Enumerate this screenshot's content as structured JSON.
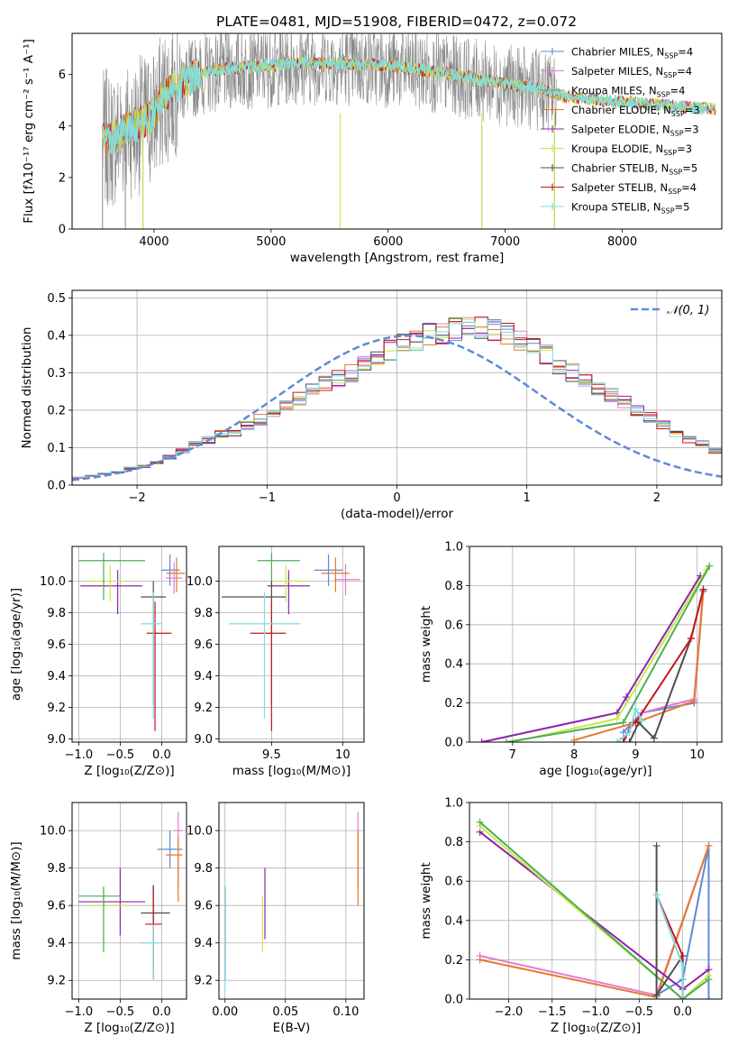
{
  "colors": {
    "chabrier_miles": "#5b8bd6",
    "salpeter_miles": "#e67bd0",
    "kroupa_miles": "#8a8a8a",
    "chabrier_elodie": "#e8772c",
    "salpeter_elodie": "#8e24aa",
    "kroupa_elodie": "#c6e84a",
    "chabrier_stelib": "#4d4d4d",
    "salpeter_stelib": "#c4161c",
    "kroupa_stelib": "#7fdde3",
    "grid": "#b0b0b0",
    "normal_curve": "#5b8bd6",
    "green_line": "#4caf50"
  },
  "chart_data": [
    {
      "id": "spectrum",
      "type": "line",
      "title": "PLATE=0481, MJD=51908, FIBERID=0472, z=0.072",
      "xlabel": "wavelength [Angstrom, rest frame]",
      "ylabel": "Flux [fλ10⁻¹⁷ erg cm⁻² s⁻¹ A⁻¹]",
      "xlim": [
        3300,
        8850
      ],
      "ylim": [
        0,
        7.6
      ],
      "xticks": [
        4000,
        5000,
        6000,
        7000,
        8000
      ],
      "yticks": [
        0,
        2,
        4,
        6
      ],
      "legend_position": "top-right",
      "legend": [
        {
          "main": "Chabrier MILES, N",
          "sub": "SSP",
          "tail": "=4"
        },
        {
          "main": "Salpeter MILES, N",
          "sub": "SSP",
          "tail": "=4"
        },
        {
          "main": "Kroupa MILES, N",
          "sub": "SSP",
          "tail": "=4"
        },
        {
          "main": "Chabrier ELODIE, N",
          "sub": "SSP",
          "tail": "=3"
        },
        {
          "main": "Salpeter ELODIE, N",
          "sub": "SSP",
          "tail": "=3"
        },
        {
          "main": "Kroupa ELODIE, N",
          "sub": "SSP",
          "tail": "=3"
        },
        {
          "main": "Chabrier STELIB, N",
          "sub": "SSP",
          "tail": "=5"
        },
        {
          "main": "Salpeter STELIB, N",
          "sub": "SSP",
          "tail": "=4"
        },
        {
          "main": "Kroupa STELIB, N",
          "sub": "SSP",
          "tail": "=5"
        }
      ],
      "model_continuum": {
        "x": [
          3550,
          3650,
          3800,
          3900,
          4000,
          4100,
          4200,
          4300,
          4400,
          4500,
          4700,
          5000,
          5200,
          5500,
          6000,
          6500,
          7000,
          7300,
          7500,
          8000,
          8500,
          8800
        ],
        "y": [
          3.9,
          3.9,
          4.3,
          4.5,
          4.8,
          5.6,
          6.0,
          6.2,
          6.4,
          6.5,
          6.6,
          6.7,
          6.8,
          6.8,
          6.7,
          6.4,
          6.0,
          5.8,
          5.5,
          5.3,
          5.1,
          5.0
        ]
      }
    },
    {
      "id": "residuals",
      "type": "bar",
      "xlabel": "(data-model)/error",
      "ylabel": "Normed distribution",
      "xlim": [
        -2.5,
        2.5
      ],
      "ylim": [
        0,
        0.52
      ],
      "xticks": [
        -2,
        -1,
        0,
        1,
        2
      ],
      "yticks": [
        0.0,
        0.1,
        0.2,
        0.3,
        0.4,
        0.5
      ],
      "legend_position": "top-right",
      "legend_label": "𝒩(0, 1)",
      "bin_edges_start": -2.5,
      "bin_width": 0.1,
      "histogram": [
        0.02,
        0.025,
        0.03,
        0.035,
        0.045,
        0.05,
        0.06,
        0.075,
        0.09,
        0.11,
        0.12,
        0.135,
        0.14,
        0.16,
        0.175,
        0.195,
        0.21,
        0.23,
        0.25,
        0.27,
        0.285,
        0.3,
        0.32,
        0.34,
        0.36,
        0.375,
        0.39,
        0.4,
        0.405,
        0.415,
        0.43,
        0.42,
        0.41,
        0.405,
        0.385,
        0.37,
        0.35,
        0.32,
        0.3,
        0.285,
        0.26,
        0.24,
        0.22,
        0.2,
        0.18,
        0.16,
        0.14,
        0.12,
        0.11,
        0.09
      ],
      "curve_mean": 0.1,
      "curve_sigma": 1.0
    },
    {
      "id": "age_vs_Z",
      "type": "scatter",
      "xlabel": "Z [log₁₀(Z/Z⊙)]",
      "ylabel": "age  [log₁₀(age/yr)]",
      "xlim": [
        -1.08,
        0.3
      ],
      "ylim": [
        8.98,
        10.22
      ],
      "xticks": [
        -1.0,
        -0.5,
        0.0
      ],
      "xtick_labels": [
        "−1.0",
        "−0.5",
        "0.0"
      ],
      "yticks": [
        9.0,
        9.2,
        9.4,
        9.6,
        9.8,
        10.0
      ],
      "points": [
        {
          "s": "chabrier_miles",
          "x": 0.1,
          "xerr": [
            0.1,
            0.12
          ],
          "y": 10.07,
          "yerr": [
            0.1,
            0.1
          ]
        },
        {
          "s": "salpeter_miles",
          "x": 0.15,
          "xerr": [
            0.1,
            0.1
          ],
          "y": 10.02,
          "yerr": [
            0.1,
            0.1
          ]
        },
        {
          "s": "chabrier_elodie",
          "x": 0.18,
          "xerr": [
            0.12,
            0.1
          ],
          "y": 10.05,
          "yerr": [
            0.12,
            0.1
          ]
        },
        {
          "s": "salpeter_elodie",
          "x": -0.53,
          "xerr": [
            0.45,
            0.3
          ],
          "y": 9.97,
          "yerr": [
            0.18,
            0.1
          ]
        },
        {
          "s": "kroupa_elodie",
          "x": -0.62,
          "xerr": [
            0.3,
            0.2
          ],
          "y": 10.0,
          "yerr": [
            0.13,
            0.1
          ]
        },
        {
          "s": "green_line",
          "x": -0.7,
          "xerr": [
            0.3,
            0.5
          ],
          "y": 10.13,
          "yerr": [
            0.25,
            0.05
          ]
        },
        {
          "s": "chabrier_stelib",
          "x": -0.1,
          "xerr": [
            0.15,
            0.15
          ],
          "y": 9.9,
          "yerr": [
            0.68,
            0.1
          ]
        },
        {
          "s": "salpeter_stelib",
          "x": -0.08,
          "xerr": [
            0.1,
            0.2
          ],
          "y": 9.67,
          "yerr": [
            0.62,
            0.2
          ]
        },
        {
          "s": "kroupa_stelib",
          "x": -0.1,
          "xerr": [
            0.15,
            0.1
          ],
          "y": 9.73,
          "yerr": [
            0.6,
            0.2
          ]
        }
      ]
    },
    {
      "id": "age_vs_mass",
      "type": "scatter",
      "xlabel": "mass [log₁₀(M/M⊙)]",
      "ylabel": "",
      "xlim": [
        9.13,
        10.15
      ],
      "ylim": [
        8.98,
        10.22
      ],
      "xticks": [
        9.5,
        10.0
      ],
      "yticks": [
        9.0,
        9.2,
        9.4,
        9.6,
        9.8,
        10.0
      ],
      "points": [
        {
          "s": "chabrier_miles",
          "x": 9.9,
          "xerr": [
            0.1,
            0.1
          ],
          "y": 10.07,
          "yerr": [
            0.1,
            0.1
          ]
        },
        {
          "s": "salpeter_miles",
          "x": 10.02,
          "xerr": [
            0.08,
            0.1
          ],
          "y": 10.01,
          "yerr": [
            0.1,
            0.1
          ]
        },
        {
          "s": "chabrier_elodie",
          "x": 9.95,
          "xerr": [
            0.1,
            0.1
          ],
          "y": 10.05,
          "yerr": [
            0.12,
            0.1
          ]
        },
        {
          "s": "salpeter_elodie",
          "x": 9.62,
          "xerr": [
            0.15,
            0.15
          ],
          "y": 9.97,
          "yerr": [
            0.18,
            0.1
          ]
        },
        {
          "s": "kroupa_elodie",
          "x": 9.6,
          "xerr": [
            0.1,
            0.15
          ],
          "y": 10.0,
          "yerr": [
            0.13,
            0.1
          ]
        },
        {
          "s": "green_line",
          "x": 9.5,
          "xerr": [
            0.1,
            0.2
          ],
          "y": 10.13,
          "yerr": [
            0.25,
            0.05
          ]
        },
        {
          "s": "chabrier_stelib",
          "x": 9.5,
          "xerr": [
            0.35,
            0.1
          ],
          "y": 9.9,
          "yerr": [
            0.68,
            0.1
          ]
        },
        {
          "s": "salpeter_stelib",
          "x": 9.5,
          "xerr": [
            0.15,
            0.1
          ],
          "y": 9.67,
          "yerr": [
            0.62,
            0.2
          ]
        },
        {
          "s": "kroupa_stelib",
          "x": 9.45,
          "xerr": [
            0.25,
            0.25
          ],
          "y": 9.73,
          "yerr": [
            0.6,
            0.2
          ]
        }
      ]
    },
    {
      "id": "weight_vs_age",
      "type": "line",
      "xlabel": "age  [log₁₀(age/yr)]",
      "ylabel": "mass weight",
      "xlim": [
        6.3,
        10.4
      ],
      "ylim": [
        0,
        1.0
      ],
      "xticks": [
        7,
        8,
        9,
        10
      ],
      "yticks": [
        0.0,
        0.2,
        0.4,
        0.6,
        0.8,
        1.0
      ],
      "series": [
        {
          "s": "chabrier_miles",
          "x": [
            8.8,
            9.1,
            9.95,
            10.1
          ],
          "y": [
            0.05,
            0.15,
            0.2,
            0.77
          ]
        },
        {
          "s": "salpeter_miles",
          "x": [
            8.8,
            9.1,
            9.95,
            10.1
          ],
          "y": [
            0.02,
            0.15,
            0.22,
            0.78
          ]
        },
        {
          "s": "chabrier_elodie",
          "x": [
            8.0,
            9.0,
            9.95,
            10.1
          ],
          "y": [
            0.01,
            0.1,
            0.21,
            0.78
          ]
        },
        {
          "s": "salpeter_elodie",
          "x": [
            6.5,
            8.7,
            8.85,
            10.05
          ],
          "y": [
            0.0,
            0.15,
            0.23,
            0.85
          ]
        },
        {
          "s": "kroupa_elodie",
          "x": [
            7.0,
            8.7,
            10.15
          ],
          "y": [
            0.0,
            0.12,
            0.88
          ]
        },
        {
          "s": "green_line",
          "x": [
            6.9,
            8.8,
            10.2
          ],
          "y": [
            0.0,
            0.1,
            0.9
          ]
        },
        {
          "s": "chabrier_stelib",
          "x": [
            8.9,
            9.05,
            9.3,
            9.9,
            10.1
          ],
          "y": [
            0.0,
            0.1,
            0.02,
            0.53,
            0.78
          ]
        },
        {
          "s": "salpeter_stelib",
          "x": [
            8.8,
            8.95,
            9.0,
            9.9,
            10.1
          ],
          "y": [
            0.0,
            0.1,
            0.1,
            0.53,
            0.78
          ]
        },
        {
          "s": "kroupa_stelib",
          "x": [
            8.7,
            8.9,
            9.0,
            9.1
          ],
          "y": [
            0.0,
            0.05,
            0.17,
            0.11
          ]
        }
      ]
    },
    {
      "id": "mass_vs_Z",
      "type": "scatter",
      "xlabel": "Z [log₁₀(Z/Z⊙)]",
      "ylabel": "mass [log₁₀(M/M⊙)]",
      "xlim": [
        -1.08,
        0.3
      ],
      "ylim": [
        9.1,
        10.15
      ],
      "xticks": [
        -1.0,
        -0.5,
        0.0
      ],
      "xtick_labels": [
        "−1.0",
        "−0.5",
        "0.0"
      ],
      "yticks": [
        9.2,
        9.4,
        9.6,
        9.8,
        10.0
      ],
      "points": [
        {
          "s": "chabrier_miles",
          "x": 0.1,
          "xerr": [
            0.15,
            0.15
          ],
          "y": 9.9,
          "yerr": [
            0.1,
            0.1
          ]
        },
        {
          "s": "salpeter_miles",
          "x": 0.2,
          "xerr": [
            0.05,
            0.05
          ],
          "y": 10.0,
          "yerr": [
            0.3,
            0.1
          ]
        },
        {
          "s": "chabrier_elodie",
          "x": 0.2,
          "xerr": [
            0.15,
            0.05
          ],
          "y": 9.87,
          "yerr": [
            0.25,
            0.1
          ]
        },
        {
          "s": "salpeter_elodie",
          "x": -0.5,
          "xerr": [
            0.5,
            0.3
          ],
          "y": 9.62,
          "yerr": [
            0.18,
            0.18
          ]
        },
        {
          "s": "kroupa_elodie",
          "x": -0.7,
          "xerr": [
            0.2,
            0.3
          ],
          "y": 9.6,
          "yerr": [
            0.25,
            0.1
          ]
        },
        {
          "s": "green_line",
          "x": -0.7,
          "xerr": [
            0.3,
            0.2
          ],
          "y": 9.65,
          "yerr": [
            0.3,
            0.05
          ]
        },
        {
          "s": "chabrier_stelib",
          "x": -0.1,
          "xerr": [
            0.15,
            0.2
          ],
          "y": 9.56,
          "yerr": [
            0.35,
            0.15
          ]
        },
        {
          "s": "salpeter_stelib",
          "x": -0.1,
          "xerr": [
            0.1,
            0.1
          ],
          "y": 9.5,
          "yerr": [
            0.2,
            0.2
          ]
        },
        {
          "s": "kroupa_stelib",
          "x": -0.1,
          "xerr": [
            0.15,
            0.1
          ],
          "y": 9.4,
          "yerr": [
            0.2,
            0.1
          ]
        }
      ]
    },
    {
      "id": "mass_vs_ebv",
      "type": "scatter",
      "xlabel": "E(B-V)",
      "ylabel": "",
      "xlim": [
        -0.005,
        0.115
      ],
      "ylim": [
        9.1,
        10.15
      ],
      "xticks": [
        0.0,
        0.05,
        0.1
      ],
      "xtick_labels": [
        "0.00",
        "0.05",
        "0.10"
      ],
      "yticks": [
        9.2,
        9.4,
        9.6,
        9.8,
        10.0
      ],
      "points": [
        {
          "s": "chabrier_miles",
          "x": 0.0,
          "xerr": [
            0,
            0
          ],
          "y": 9.4,
          "yerr": [
            0.2,
            0.25
          ]
        },
        {
          "s": "salpeter_miles",
          "x": 0.11,
          "xerr": [
            0,
            0
          ],
          "y": 9.9,
          "yerr": [
            0.2,
            0.2
          ]
        },
        {
          "s": "chabrier_elodie",
          "x": 0.11,
          "xerr": [
            0,
            0
          ],
          "y": 9.85,
          "yerr": [
            0.25,
            0.15
          ]
        },
        {
          "s": "salpeter_elodie",
          "x": 0.033,
          "xerr": [
            0,
            0
          ],
          "y": 9.6,
          "yerr": [
            0.18,
            0.2
          ]
        },
        {
          "s": "kroupa_elodie",
          "x": 0.031,
          "xerr": [
            0,
            0
          ],
          "y": 9.5,
          "yerr": [
            0.15,
            0.15
          ]
        },
        {
          "s": "chabrier_stelib",
          "x": 0.0,
          "xerr": [
            0,
            0
          ],
          "y": 9.5,
          "yerr": [
            0.3,
            0.2
          ]
        },
        {
          "s": "salpeter_stelib",
          "x": 0.0,
          "xerr": [
            0,
            0
          ],
          "y": 9.5,
          "yerr": [
            0.2,
            0.2
          ]
        },
        {
          "s": "kroupa_stelib",
          "x": 0.0,
          "xerr": [
            0,
            0
          ],
          "y": 9.4,
          "yerr": [
            0.25,
            0.3
          ]
        }
      ]
    },
    {
      "id": "weight_vs_Z",
      "type": "line",
      "xlabel": "Z [log₁₀(Z/Z⊙)]",
      "ylabel": "mass weight",
      "xlim": [
        -2.45,
        0.45
      ],
      "ylim": [
        0,
        1.0
      ],
      "xticks": [
        -2.0,
        -1.5,
        -1.0,
        -0.5,
        0.0
      ],
      "xtick_labels": [
        "−2.0",
        "−1.5",
        "−1.0",
        "−0.5",
        "0.0"
      ],
      "yticks": [
        0.0,
        0.2,
        0.4,
        0.6,
        0.8,
        1.0
      ],
      "series": [
        {
          "s": "chabrier_miles",
          "x": [
            -0.3,
            0.0,
            0.3,
            0.3
          ],
          "y": [
            0.02,
            0.1,
            0.78,
            0.0
          ]
        },
        {
          "s": "salpeter_miles",
          "x": [
            -2.33,
            -0.3,
            0.3
          ],
          "y": [
            0.22,
            0.02,
            0.78
          ]
        },
        {
          "s": "chabrier_elodie",
          "x": [
            -2.33,
            -0.3,
            0.3
          ],
          "y": [
            0.2,
            0.01,
            0.78
          ]
        },
        {
          "s": "salpeter_elodie",
          "x": [
            -2.33,
            0.0,
            0.3
          ],
          "y": [
            0.85,
            0.05,
            0.15
          ]
        },
        {
          "s": "kroupa_elodie",
          "x": [
            -2.33,
            0.0,
            0.3
          ],
          "y": [
            0.88,
            0.0,
            0.12
          ]
        },
        {
          "s": "green_line",
          "x": [
            -2.33,
            0.0,
            0.3
          ],
          "y": [
            0.9,
            0.0,
            0.1
          ]
        },
        {
          "s": "chabrier_stelib",
          "x": [
            -0.3,
            -0.3,
            0.0,
            0.0
          ],
          "y": [
            0.78,
            0.02,
            0.22,
            0.0
          ]
        },
        {
          "s": "salpeter_stelib",
          "x": [
            -0.3,
            0.0,
            0.0
          ],
          "y": [
            0.53,
            0.22,
            0.0
          ]
        },
        {
          "s": "kroupa_stelib",
          "x": [
            -0.3,
            0.0,
            0.0
          ],
          "y": [
            0.53,
            0.17,
            0.0
          ]
        }
      ]
    }
  ]
}
